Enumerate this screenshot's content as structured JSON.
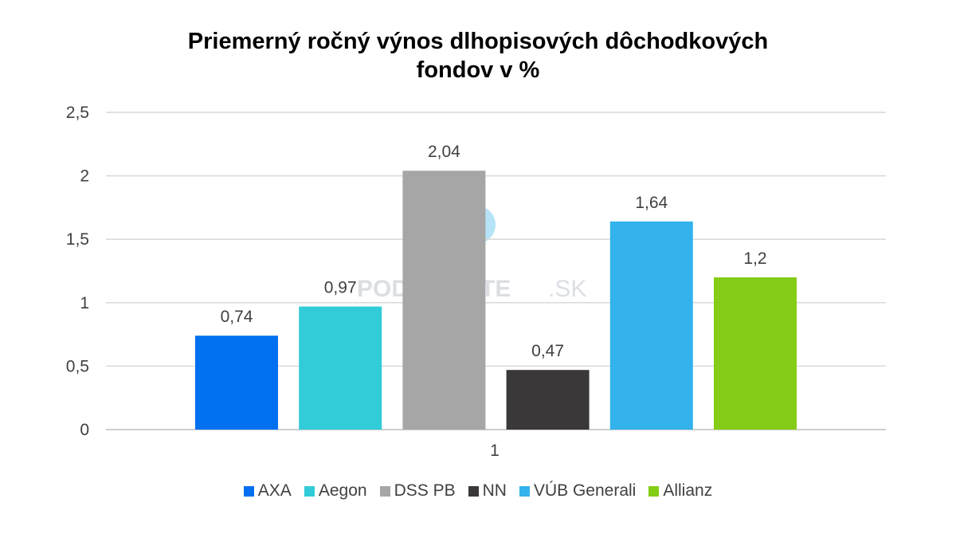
{
  "chart_data": {
    "type": "bar",
    "title_lines": [
      "Priemerný ročný výnos dlhopisových dôchodkových",
      "fondov v %"
    ],
    "categories": [
      "1"
    ],
    "series": [
      {
        "name": "AXA",
        "values": [
          0.74
        ],
        "label": "0,74",
        "color": "#0070F0"
      },
      {
        "name": "Aegon",
        "values": [
          0.97
        ],
        "label": "0,97",
        "color": "#31CCD8"
      },
      {
        "name": "DSS PB",
        "values": [
          2.04
        ],
        "label": "2,04",
        "color": "#A6A6A6"
      },
      {
        "name": "NN",
        "values": [
          0.47
        ],
        "label": "0,47",
        "color": "#3A3838"
      },
      {
        "name": "VÚB Generali",
        "values": [
          1.64
        ],
        "label": "1,64",
        "color": "#33B2EB"
      },
      {
        "name": "Allianz",
        "values": [
          1.2
        ],
        "label": "1,2",
        "color": "#84CC16"
      }
    ],
    "ylim": [
      0,
      2.5
    ],
    "yticks": [
      0,
      0.5,
      1,
      1.5,
      2,
      2.5
    ],
    "ytick_labels": [
      "0",
      "0,5",
      "1",
      "1,5",
      "2",
      "2,5"
    ],
    "xtick_labels": [
      "1"
    ],
    "grid": true,
    "legend_position": "bottom"
  },
  "watermark": {
    "text_bold": "PODNIKAJTE",
    "text_light": ".SK"
  }
}
